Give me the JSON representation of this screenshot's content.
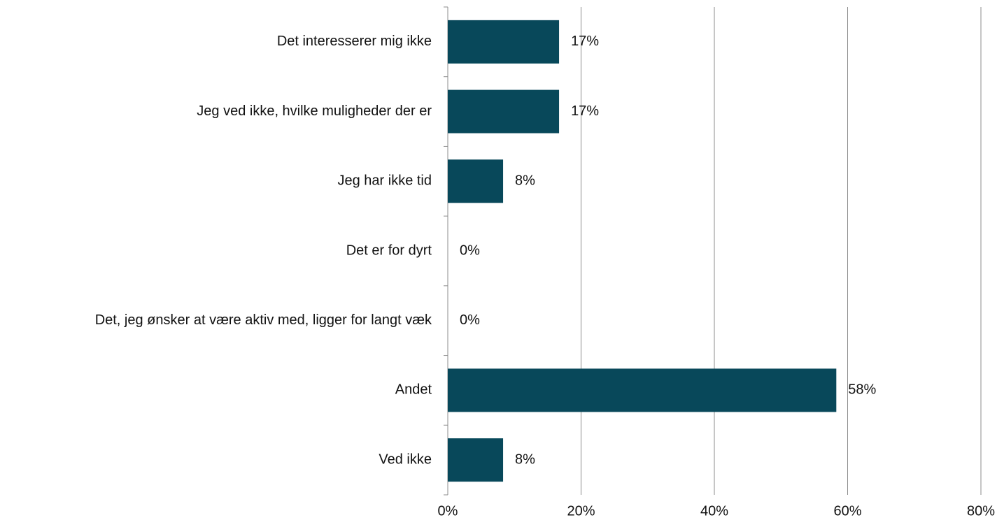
{
  "chart_data": {
    "type": "barh",
    "categories": [
      "Det interesserer mig ikke",
      "Jeg ved ikke, hvilke muligheder der er",
      "Jeg har ikke tid",
      "Det er for dyrt",
      "Det, jeg ønsker at være aktiv med, ligger for langt væk",
      "Andet",
      "Ved ikke"
    ],
    "values": [
      16.7,
      16.7,
      8.3,
      0,
      0,
      58.3,
      8.3
    ],
    "value_labels": [
      "17%",
      "17%",
      "8%",
      "0%",
      "0%",
      "58%",
      "8%"
    ],
    "color": "#08485a",
    "xlim": [
      0,
      80
    ],
    "xticks": [
      {
        "value": 0,
        "label": "0%"
      },
      {
        "value": 20,
        "label": "20%"
      },
      {
        "value": 40,
        "label": "40%"
      },
      {
        "value": 60,
        "label": "60%"
      },
      {
        "value": 80,
        "label": "80%"
      }
    ],
    "grid": true
  }
}
